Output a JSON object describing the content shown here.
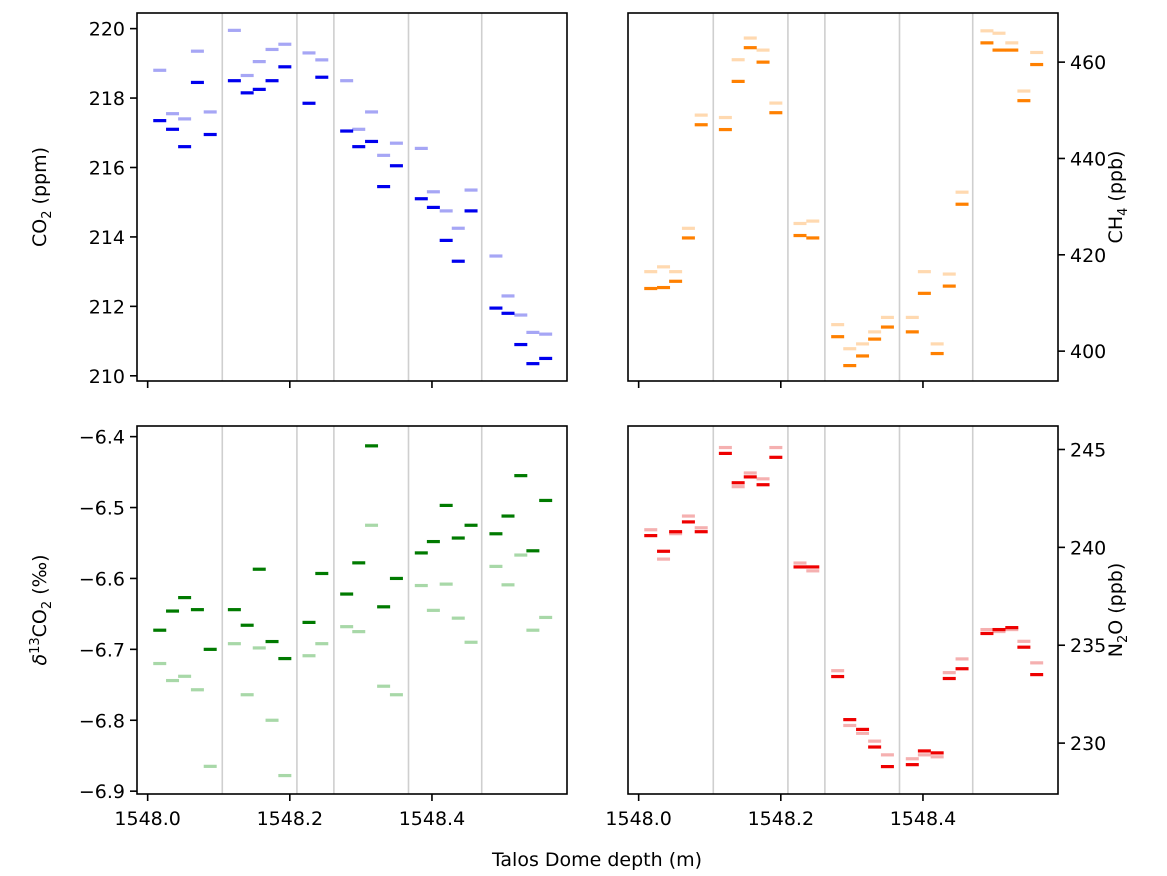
{
  "figure": {
    "xlabel": "Talos Dome depth (m)"
  },
  "chart_data": [
    {
      "id": "co2",
      "type": "scatter",
      "ylabel_parts": [
        "CO",
        "2",
        " (ppm)"
      ],
      "x_ticks": [
        1548.0,
        1548.2,
        1548.4
      ],
      "x_tick_labels": [
        "",
        "",
        ""
      ],
      "xlim": [
        1547.985,
        1548.59
      ],
      "y_ticks": [
        210,
        212,
        214,
        216,
        218,
        220
      ],
      "y_tick_labels": [
        "210",
        "212",
        "214",
        "216",
        "218",
        "220"
      ],
      "ylim": [
        209.85,
        220.45
      ],
      "vlines": [
        1548.105,
        1548.21,
        1548.262,
        1548.367,
        1548.47
      ],
      "series": [
        {
          "color": "#0000ee",
          "points": [
            [
              1548.017,
              217.35
            ],
            [
              1548.035,
              217.1
            ],
            [
              1548.052,
              216.6
            ],
            [
              1548.07,
              218.45
            ],
            [
              1548.088,
              216.95
            ],
            [
              1548.122,
              218.5
            ],
            [
              1548.14,
              218.15
            ],
            [
              1548.157,
              218.25
            ],
            [
              1548.175,
              218.5
            ],
            [
              1548.193,
              218.9
            ],
            [
              1548.227,
              217.85
            ],
            [
              1548.245,
              218.6
            ],
            [
              1548.28,
              217.05
            ],
            [
              1548.297,
              216.6
            ],
            [
              1548.315,
              216.75
            ],
            [
              1548.332,
              215.45
            ],
            [
              1548.35,
              216.05
            ],
            [
              1548.385,
              215.1
            ],
            [
              1548.402,
              214.85
            ],
            [
              1548.42,
              213.9
            ],
            [
              1548.437,
              213.3
            ],
            [
              1548.455,
              214.75
            ],
            [
              1548.49,
              211.95
            ],
            [
              1548.507,
              211.8
            ],
            [
              1548.525,
              210.9
            ],
            [
              1548.542,
              210.35
            ],
            [
              1548.56,
              210.5
            ]
          ]
        },
        {
          "color": "#a6a6f5",
          "points": [
            [
              1548.017,
              218.8
            ],
            [
              1548.035,
              217.55
            ],
            [
              1548.052,
              217.4
            ],
            [
              1548.07,
              219.35
            ],
            [
              1548.088,
              217.6
            ],
            [
              1548.122,
              219.95
            ],
            [
              1548.14,
              218.65
            ],
            [
              1548.157,
              219.05
            ],
            [
              1548.175,
              219.4
            ],
            [
              1548.193,
              219.55
            ],
            [
              1548.227,
              219.3
            ],
            [
              1548.245,
              219.1
            ],
            [
              1548.28,
              218.5
            ],
            [
              1548.297,
              217.1
            ],
            [
              1548.315,
              217.6
            ],
            [
              1548.332,
              216.35
            ],
            [
              1548.35,
              216.7
            ],
            [
              1548.385,
              216.55
            ],
            [
              1548.402,
              215.3
            ],
            [
              1548.42,
              214.75
            ],
            [
              1548.437,
              214.25
            ],
            [
              1548.455,
              215.35
            ],
            [
              1548.49,
              213.45
            ],
            [
              1548.507,
              212.3
            ],
            [
              1548.525,
              211.75
            ],
            [
              1548.542,
              211.25
            ],
            [
              1548.56,
              211.2
            ]
          ]
        }
      ]
    },
    {
      "id": "ch4",
      "type": "scatter",
      "ylabel_parts": [
        "CH",
        "4",
        " (ppb)"
      ],
      "x_ticks": [
        1548.0,
        1548.2,
        1548.4
      ],
      "x_tick_labels": [
        "",
        "",
        ""
      ],
      "xlim": [
        1547.985,
        1548.59
      ],
      "y_ticks": [
        400,
        420,
        440,
        460
      ],
      "y_tick_labels": [
        "400",
        "420",
        "440",
        "460"
      ],
      "ylim": [
        393.8,
        470.2
      ],
      "vlines": [
        1548.105,
        1548.21,
        1548.262,
        1548.367,
        1548.47
      ],
      "series": [
        {
          "color": "#ff8000",
          "points": [
            [
              1548.017,
              413.0
            ],
            [
              1548.035,
              413.2
            ],
            [
              1548.052,
              414.5
            ],
            [
              1548.07,
              423.5
            ],
            [
              1548.088,
              447.0
            ],
            [
              1548.122,
              446.0
            ],
            [
              1548.14,
              456.0
            ],
            [
              1548.157,
              463.0
            ],
            [
              1548.175,
              460.0
            ],
            [
              1548.193,
              449.5
            ],
            [
              1548.227,
              424.0
            ],
            [
              1548.245,
              423.5
            ],
            [
              1548.28,
              403.0
            ],
            [
              1548.297,
              397.0
            ],
            [
              1548.315,
              399.0
            ],
            [
              1548.332,
              402.5
            ],
            [
              1548.35,
              405.0
            ],
            [
              1548.385,
              404.0
            ],
            [
              1548.402,
              412.0
            ],
            [
              1548.42,
              399.5
            ],
            [
              1548.437,
              413.5
            ],
            [
              1548.455,
              430.5
            ],
            [
              1548.49,
              464.0
            ],
            [
              1548.507,
              462.5
            ],
            [
              1548.525,
              462.5
            ],
            [
              1548.542,
              452.0
            ],
            [
              1548.56,
              459.5
            ]
          ]
        },
        {
          "color": "#ffd9b0",
          "points": [
            [
              1548.017,
              416.5
            ],
            [
              1548.035,
              417.5
            ],
            [
              1548.052,
              416.5
            ],
            [
              1548.07,
              425.5
            ],
            [
              1548.088,
              449.0
            ],
            [
              1548.122,
              448.5
            ],
            [
              1548.14,
              460.5
            ],
            [
              1548.157,
              465.0
            ],
            [
              1548.175,
              462.5
            ],
            [
              1548.193,
              451.5
            ],
            [
              1548.227,
              426.5
            ],
            [
              1548.245,
              427.0
            ],
            [
              1548.28,
              405.5
            ],
            [
              1548.297,
              400.5
            ],
            [
              1548.315,
              401.5
            ],
            [
              1548.332,
              404.0
            ],
            [
              1548.35,
              407.0
            ],
            [
              1548.385,
              407.0
            ],
            [
              1548.402,
              416.5
            ],
            [
              1548.42,
              401.5
            ],
            [
              1548.437,
              416.0
            ],
            [
              1548.455,
              433.0
            ],
            [
              1548.49,
              466.5
            ],
            [
              1548.507,
              466.0
            ],
            [
              1548.525,
              464.0
            ],
            [
              1548.542,
              454.0
            ],
            [
              1548.56,
              462.0
            ]
          ]
        }
      ]
    },
    {
      "id": "d13co2",
      "type": "scatter",
      "ylabel_parts": [
        "δ",
        "13",
        "CO",
        "2",
        " (‰)"
      ],
      "x_ticks": [
        1548.0,
        1548.2,
        1548.4
      ],
      "x_tick_labels": [
        "1548.0",
        "1548.2",
        "1548.4"
      ],
      "xlim": [
        1547.985,
        1548.59
      ],
      "y_ticks": [
        -6.9,
        -6.8,
        -6.7,
        -6.6,
        -6.5,
        -6.4
      ],
      "y_tick_labels": [
        "−6.9",
        "−6.8",
        "−6.7",
        "−6.6",
        "−6.5",
        "−6.4"
      ],
      "ylim": [
        -6.904,
        -6.385
      ],
      "vlines": [
        1548.105,
        1548.21,
        1548.262,
        1548.367,
        1548.47
      ],
      "series": [
        {
          "color": "#007a00",
          "points": [
            [
              1548.017,
              -6.673
            ],
            [
              1548.035,
              -6.646
            ],
            [
              1548.052,
              -6.627
            ],
            [
              1548.07,
              -6.644
            ],
            [
              1548.088,
              -6.7
            ],
            [
              1548.122,
              -6.644
            ],
            [
              1548.14,
              -6.666
            ],
            [
              1548.157,
              -6.587
            ],
            [
              1548.175,
              -6.689
            ],
            [
              1548.193,
              -6.713
            ],
            [
              1548.227,
              -6.662
            ],
            [
              1548.245,
              -6.593
            ],
            [
              1548.28,
              -6.622
            ],
            [
              1548.297,
              -6.578
            ],
            [
              1548.315,
              -6.413
            ],
            [
              1548.332,
              -6.64
            ],
            [
              1548.35,
              -6.6
            ],
            [
              1548.385,
              -6.564
            ],
            [
              1548.402,
              -6.548
            ],
            [
              1548.42,
              -6.497
            ],
            [
              1548.437,
              -6.543
            ],
            [
              1548.455,
              -6.525
            ],
            [
              1548.49,
              -6.537
            ],
            [
              1548.507,
              -6.512
            ],
            [
              1548.525,
              -6.455
            ],
            [
              1548.542,
              -6.561
            ],
            [
              1548.56,
              -6.49
            ]
          ]
        },
        {
          "color": "#a8d8a8",
          "points": [
            [
              1548.017,
              -6.72
            ],
            [
              1548.035,
              -6.744
            ],
            [
              1548.052,
              -6.738
            ],
            [
              1548.07,
              -6.757
            ],
            [
              1548.088,
              -6.865
            ],
            [
              1548.122,
              -6.692
            ],
            [
              1548.14,
              -6.764
            ],
            [
              1548.157,
              -6.698
            ],
            [
              1548.175,
              -6.8
            ],
            [
              1548.193,
              -6.878
            ],
            [
              1548.227,
              -6.709
            ],
            [
              1548.245,
              -6.692
            ],
            [
              1548.28,
              -6.668
            ],
            [
              1548.297,
              -6.675
            ],
            [
              1548.315,
              -6.525
            ],
            [
              1548.332,
              -6.752
            ],
            [
              1548.35,
              -6.764
            ],
            [
              1548.385,
              -6.61
            ],
            [
              1548.402,
              -6.645
            ],
            [
              1548.42,
              -6.608
            ],
            [
              1548.437,
              -6.656
            ],
            [
              1548.455,
              -6.69
            ],
            [
              1548.49,
              -6.583
            ],
            [
              1548.507,
              -6.609
            ],
            [
              1548.525,
              -6.567
            ],
            [
              1548.542,
              -6.673
            ],
            [
              1548.56,
              -6.655
            ]
          ]
        }
      ]
    },
    {
      "id": "n2o",
      "type": "scatter",
      "ylabel_parts": [
        "N",
        "2",
        "O (ppb)"
      ],
      "x_ticks": [
        1548.0,
        1548.2,
        1548.4
      ],
      "x_tick_labels": [
        "1548.0",
        "1548.2",
        "1548.4"
      ],
      "xlim": [
        1547.985,
        1548.59
      ],
      "y_ticks": [
        230,
        235,
        240,
        245
      ],
      "y_tick_labels": [
        "230",
        "235",
        "240",
        "245"
      ],
      "ylim": [
        227.4,
        246.2
      ],
      "vlines": [
        1548.105,
        1548.21,
        1548.262,
        1548.367,
        1548.47
      ],
      "series": [
        {
          "color": "#ee0000",
          "points": [
            [
              1548.017,
              240.6
            ],
            [
              1548.035,
              239.8
            ],
            [
              1548.052,
              240.8
            ],
            [
              1548.07,
              241.3
            ],
            [
              1548.088,
              240.8
            ],
            [
              1548.122,
              244.8
            ],
            [
              1548.14,
              243.3
            ],
            [
              1548.157,
              243.6
            ],
            [
              1548.175,
              243.2
            ],
            [
              1548.193,
              244.6
            ],
            [
              1548.227,
              239.0
            ],
            [
              1548.245,
              239.0
            ],
            [
              1548.28,
              233.4
            ],
            [
              1548.297,
              231.2
            ],
            [
              1548.315,
              230.7
            ],
            [
              1548.332,
              229.8
            ],
            [
              1548.35,
              228.8
            ],
            [
              1548.385,
              228.9
            ],
            [
              1548.402,
              229.6
            ],
            [
              1548.42,
              229.5
            ],
            [
              1548.437,
              233.3
            ],
            [
              1548.455,
              233.8
            ],
            [
              1548.49,
              235.6
            ],
            [
              1548.507,
              235.8
            ],
            [
              1548.525,
              235.9
            ],
            [
              1548.542,
              234.9
            ],
            [
              1548.56,
              233.5
            ]
          ]
        },
        {
          "color": "#f5b0b0",
          "points": [
            [
              1548.017,
              240.9
            ],
            [
              1548.035,
              239.4
            ],
            [
              1548.052,
              240.7
            ],
            [
              1548.07,
              241.6
            ],
            [
              1548.088,
              241.0
            ],
            [
              1548.122,
              245.1
            ],
            [
              1548.14,
              243.1
            ],
            [
              1548.157,
              243.8
            ],
            [
              1548.175,
              243.5
            ],
            [
              1548.193,
              245.1
            ],
            [
              1548.227,
              239.2
            ],
            [
              1548.245,
              238.8
            ],
            [
              1548.28,
              233.7
            ],
            [
              1548.297,
              230.9
            ],
            [
              1548.315,
              230.5
            ],
            [
              1548.332,
              230.1
            ],
            [
              1548.35,
              229.4
            ],
            [
              1548.385,
              229.2
            ],
            [
              1548.402,
              229.4
            ],
            [
              1548.42,
              229.3
            ],
            [
              1548.437,
              233.6
            ],
            [
              1548.455,
              234.3
            ],
            [
              1548.49,
              235.8
            ],
            [
              1548.507,
              235.7
            ],
            [
              1548.525,
              235.8
            ],
            [
              1548.542,
              235.2
            ],
            [
              1548.56,
              234.1
            ]
          ]
        }
      ]
    }
  ]
}
